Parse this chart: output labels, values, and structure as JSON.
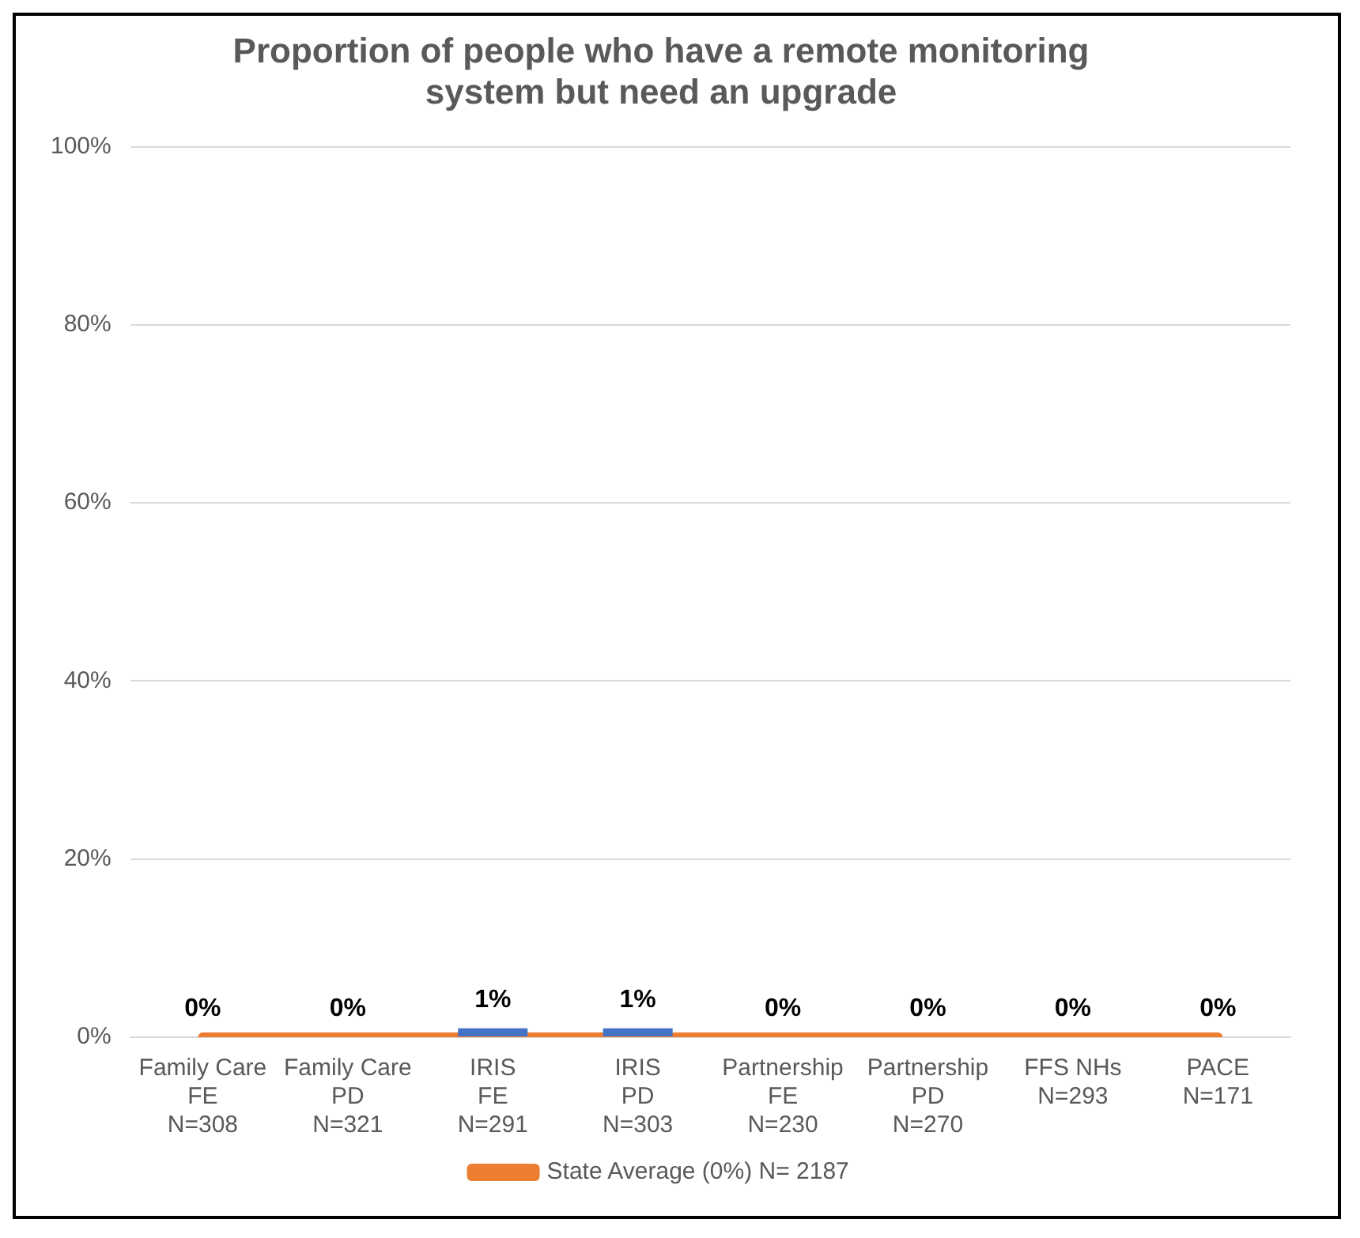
{
  "chart_data": {
    "type": "bar",
    "title": "Proportion of people who have a remote monitoring\nsystem but need an upgrade",
    "categories": [
      "Family Care\nFE\nN=308",
      "Family Care\nPD\nN=321",
      "IRIS\nFE\nN=291",
      "IRIS\nPD\nN=303",
      "Partnership\nFE\nN=230",
      "Partnership\nPD\nN=270",
      "FFS NHs\nN=293",
      "PACE\nN=171"
    ],
    "series": [
      {
        "color": "#4472c4",
        "values": [
          0,
          0,
          1,
          1,
          0,
          0,
          0,
          0
        ],
        "value_labels": [
          "0%",
          "0%",
          "1%",
          "1%",
          "0%",
          "0%",
          "0%",
          "0%"
        ]
      },
      {
        "type": "line",
        "name": "State Average (0%) N= 2187",
        "color": "#ed7d31",
        "values": [
          0,
          0,
          0,
          0,
          0,
          0,
          0,
          0
        ]
      }
    ],
    "ylim": [
      0,
      100
    ],
    "yticks": [
      {
        "value": 0,
        "label": "0%"
      },
      {
        "value": 20,
        "label": "20%"
      },
      {
        "value": 40,
        "label": "40%"
      },
      {
        "value": 60,
        "label": "60%"
      },
      {
        "value": 80,
        "label": "80%"
      },
      {
        "value": 100,
        "label": "100%"
      }
    ],
    "grid": "y",
    "legend": "bottom",
    "marker": "none"
  }
}
